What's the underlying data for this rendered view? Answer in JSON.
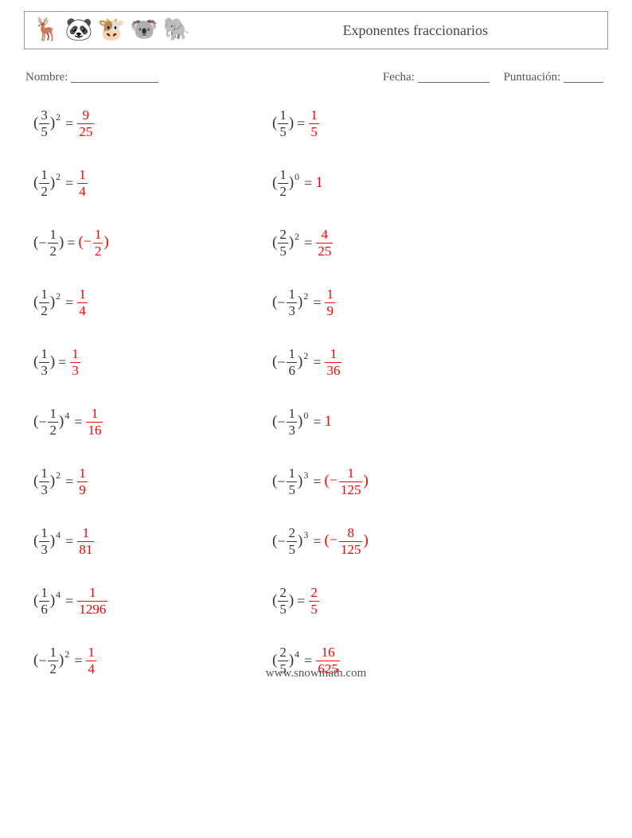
{
  "header": {
    "title": "Exponentes fraccionarios",
    "icons": [
      "🦌",
      "🐼",
      "🐮",
      "🐨",
      "🐘"
    ]
  },
  "info": {
    "name_label": "Nombre:",
    "date_label": "Fecha:",
    "score_label": "Puntuación:",
    "name_blank_width": 110,
    "date_blank_width": 90,
    "score_blank_width": 50
  },
  "footer": "www.snowmath.com",
  "problems": [
    {
      "sign": "",
      "bn": "3",
      "bd": "5",
      "exp": "2",
      "ans_sign": "",
      "ans_type": "frac",
      "an": "9",
      "ad": "25"
    },
    {
      "sign": "",
      "bn": "1",
      "bd": "5",
      "exp": "",
      "ans_sign": "",
      "ans_type": "frac",
      "an": "1",
      "ad": "5"
    },
    {
      "sign": "",
      "bn": "1",
      "bd": "2",
      "exp": "2",
      "ans_sign": "",
      "ans_type": "frac",
      "an": "1",
      "ad": "4"
    },
    {
      "sign": "",
      "bn": "1",
      "bd": "2",
      "exp": "0",
      "ans_sign": "",
      "ans_type": "int",
      "av": "1"
    },
    {
      "sign": "−",
      "bn": "1",
      "bd": "2",
      "exp": "",
      "ans_sign": "−",
      "ans_type": "frac",
      "an": "1",
      "ad": "2",
      "ans_paren": true
    },
    {
      "sign": "",
      "bn": "2",
      "bd": "5",
      "exp": "2",
      "ans_sign": "",
      "ans_type": "frac",
      "an": "4",
      "ad": "25"
    },
    {
      "sign": "",
      "bn": "1",
      "bd": "2",
      "exp": "2",
      "ans_sign": "",
      "ans_type": "frac",
      "an": "1",
      "ad": "4"
    },
    {
      "sign": "−",
      "bn": "1",
      "bd": "3",
      "exp": "2",
      "ans_sign": "",
      "ans_type": "frac",
      "an": "1",
      "ad": "9"
    },
    {
      "sign": "",
      "bn": "1",
      "bd": "3",
      "exp": "",
      "ans_sign": "",
      "ans_type": "frac",
      "an": "1",
      "ad": "3"
    },
    {
      "sign": "−",
      "bn": "1",
      "bd": "6",
      "exp": "2",
      "ans_sign": "",
      "ans_type": "frac",
      "an": "1",
      "ad": "36"
    },
    {
      "sign": "−",
      "bn": "1",
      "bd": "2",
      "exp": "4",
      "ans_sign": "",
      "ans_type": "frac",
      "an": "1",
      "ad": "16"
    },
    {
      "sign": "−",
      "bn": "1",
      "bd": "3",
      "exp": "0",
      "ans_sign": "",
      "ans_type": "int",
      "av": "1"
    },
    {
      "sign": "",
      "bn": "1",
      "bd": "3",
      "exp": "2",
      "ans_sign": "",
      "ans_type": "frac",
      "an": "1",
      "ad": "9"
    },
    {
      "sign": "−",
      "bn": "1",
      "bd": "5",
      "exp": "3",
      "ans_sign": "−",
      "ans_type": "frac",
      "an": "1",
      "ad": "125",
      "ans_paren": true
    },
    {
      "sign": "",
      "bn": "1",
      "bd": "3",
      "exp": "4",
      "ans_sign": "",
      "ans_type": "frac",
      "an": "1",
      "ad": "81"
    },
    {
      "sign": "−",
      "bn": "2",
      "bd": "5",
      "exp": "3",
      "ans_sign": "−",
      "ans_type": "frac",
      "an": "8",
      "ad": "125",
      "ans_paren": true
    },
    {
      "sign": "",
      "bn": "1",
      "bd": "6",
      "exp": "4",
      "ans_sign": "",
      "ans_type": "frac",
      "an": "1",
      "ad": "1296"
    },
    {
      "sign": "",
      "bn": "2",
      "bd": "5",
      "exp": "",
      "ans_sign": "",
      "ans_type": "frac",
      "an": "2",
      "ad": "5"
    },
    {
      "sign": "−",
      "bn": "1",
      "bd": "2",
      "exp": "2",
      "ans_sign": "",
      "ans_type": "frac",
      "an": "1",
      "ad": "4"
    },
    {
      "sign": "",
      "bn": "2",
      "bd": "5",
      "exp": "4",
      "ans_sign": "",
      "ans_type": "frac",
      "an": "16",
      "ad": "625"
    }
  ]
}
